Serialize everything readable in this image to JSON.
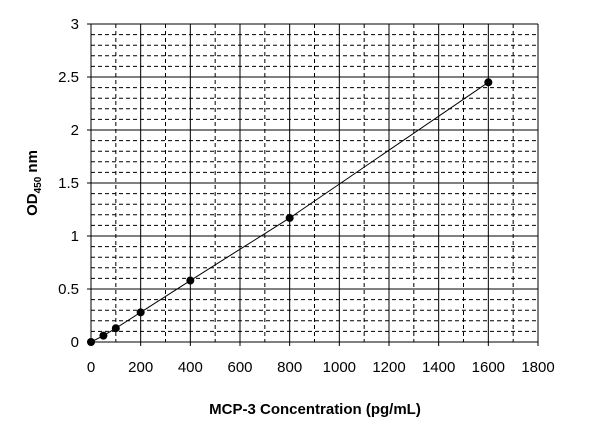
{
  "chart_data": {
    "type": "scatter",
    "title": "",
    "xlabel": "MCP-3 Concentration (pg/mL)",
    "ylabel_main": "OD",
    "ylabel_sub": "450",
    "ylabel_unit": " nm",
    "xlim": [
      0,
      1800
    ],
    "ylim": [
      0,
      3
    ],
    "x_ticks": [
      "0",
      "200",
      "400",
      "600",
      "800",
      "1000",
      "1200",
      "1400",
      "1600",
      "1800"
    ],
    "y_ticks": [
      "0",
      "0.5",
      "1",
      "1.5",
      "2",
      "2.5",
      "3"
    ],
    "grid": "major solid, minor dashed",
    "connected": true,
    "series": [
      {
        "x": [
          0,
          50,
          100,
          200,
          400,
          800,
          1600
        ],
        "y": [
          0,
          0.06,
          0.13,
          0.28,
          0.58,
          1.17,
          2.45
        ]
      }
    ],
    "colors": {
      "marker": "#000000",
      "line": "#000000"
    }
  }
}
